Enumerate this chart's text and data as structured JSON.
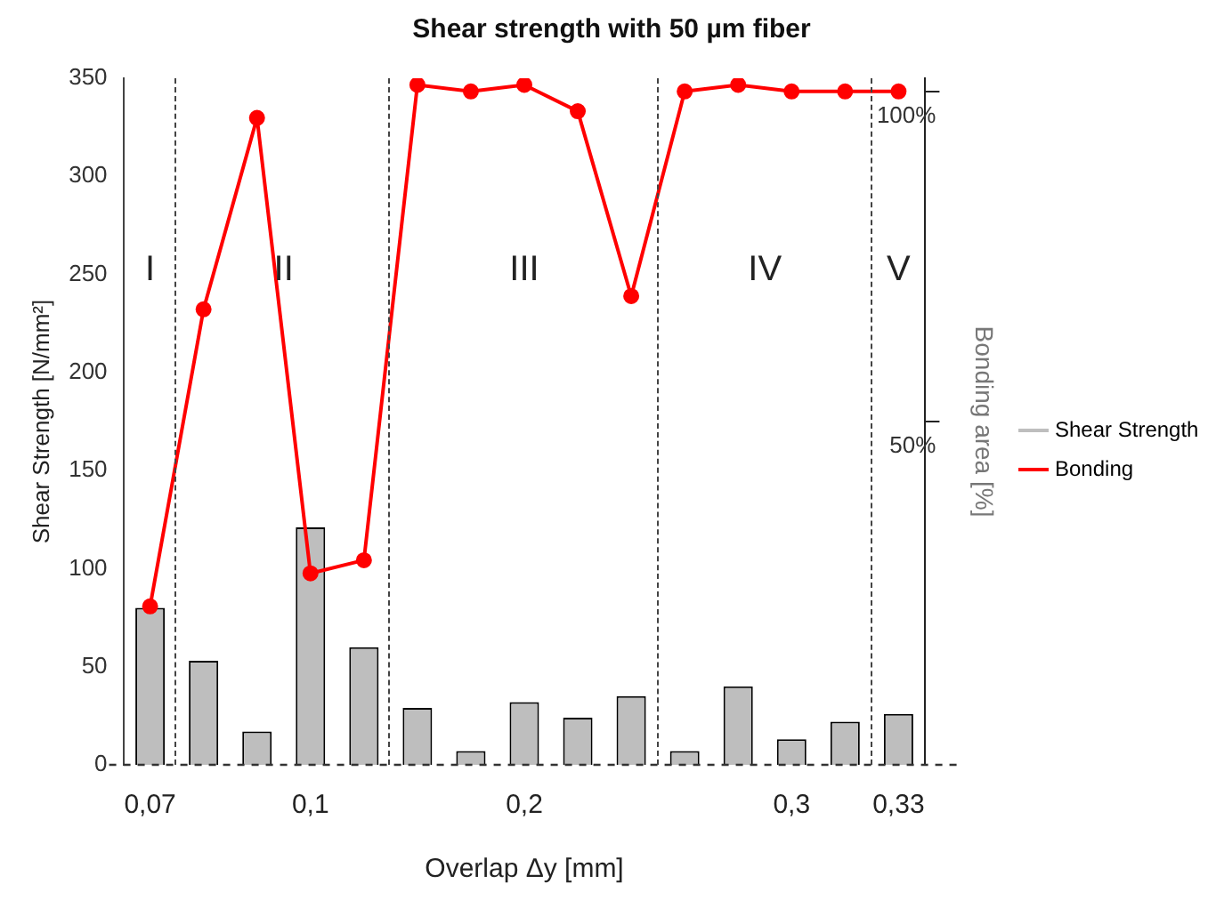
{
  "chart_data": {
    "type": "bar",
    "title": "Shear strength with 50 µm fiber",
    "xlabel": "Overlap Δy [mm]",
    "ylabel": "Shear Strength [N/mm²]",
    "y2label": "Bonding area [%]",
    "categories": [
      "0,07",
      null,
      null,
      "0,1",
      null,
      null,
      null,
      "0,2",
      null,
      null,
      null,
      null,
      "0,3",
      null,
      "0,33"
    ],
    "series": [
      {
        "name": "Shear Strength",
        "color": "#bebebe",
        "values": [
          80,
          53,
          17,
          121,
          60,
          29,
          7,
          32,
          24,
          35,
          7,
          40,
          13,
          22,
          26
        ]
      },
      {
        "name": "Bonding",
        "type": "line",
        "axis": "y2",
        "color": "#ff0000",
        "values": [
          22,
          67,
          96,
          27,
          29,
          101,
          100,
          101,
          97,
          69,
          100,
          101,
          100,
          100,
          100
        ]
      }
    ],
    "ylim": [
      0,
      350
    ],
    "yticks": [
      0,
      50,
      100,
      150,
      200,
      250,
      300,
      350
    ],
    "y2lim": [
      -2,
      102
    ],
    "y2ticks": [
      {
        "value": 50,
        "label": "50%"
      },
      {
        "value": 100,
        "label": "100%"
      }
    ],
    "annotations": [
      "I",
      "II",
      "III",
      "IV",
      "V"
    ],
    "ref_lines": [
      {
        "axis": "y",
        "value": 0,
        "line_style": "dashed"
      }
    ],
    "marker": "circle",
    "grid": false,
    "legend": "right"
  }
}
